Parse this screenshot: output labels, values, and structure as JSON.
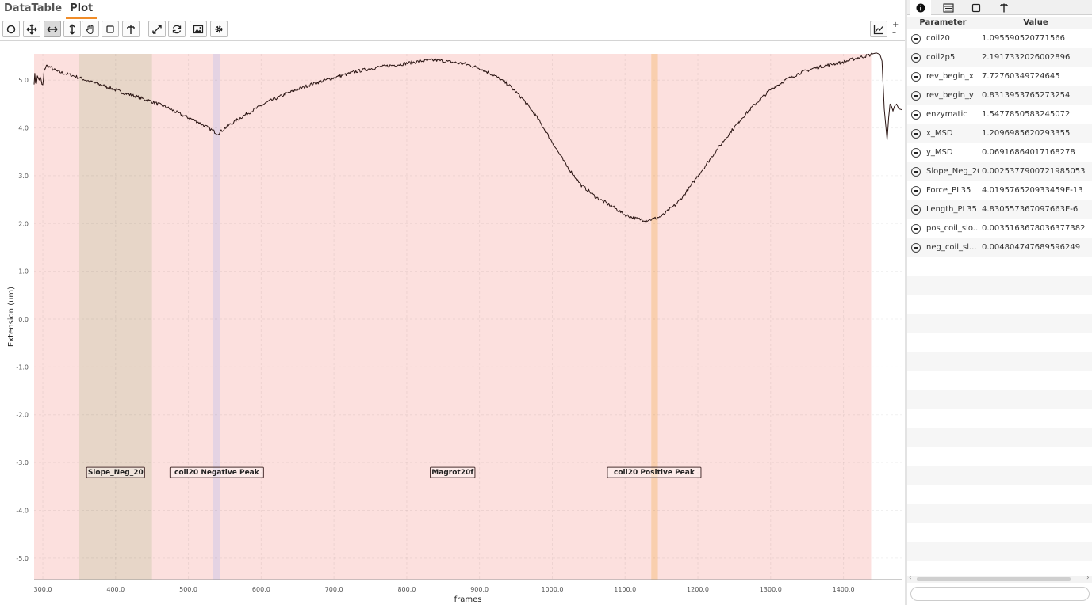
{
  "tabs": [
    {
      "label": "DataTable",
      "active": false
    },
    {
      "label": "Plot",
      "active": true
    }
  ],
  "toolbar": {
    "tools": [
      "select-tool-icon",
      "pan-move-icon",
      "horizontal-zoom-icon",
      "vertical-zoom-icon",
      "grab-hand-icon",
      "box-select-icon",
      "annotate-pin-icon",
      "expand-icon",
      "refresh-icon",
      "save-image-icon",
      "settings-gear-icon",
      "chart-line-icon"
    ],
    "active_tool": "horizontal-zoom-icon",
    "zoom_plus": "+",
    "zoom_minus": "–"
  },
  "colors": {
    "trace": "#2a1412",
    "region_main": "#fce0de",
    "region_slope": "#e7d6c8",
    "region_neg_peak": "#e4d3e3",
    "region_pos_peak": "#f9cfae",
    "active_tab_underline": "#f08c28"
  },
  "chart_data": {
    "type": "line",
    "xlabel": "frames",
    "ylabel": "Extension (um)",
    "xlim": [
      288,
      1480
    ],
    "ylim": [
      -5.45,
      5.55
    ],
    "x_ticks": [
      300,
      400,
      500,
      600,
      700,
      800,
      900,
      1000,
      1100,
      1200,
      1300,
      1400
    ],
    "x_tick_labels": [
      "300.0",
      "400.0",
      "500.0",
      "600.0",
      "700.0",
      "800.0",
      "900.0",
      "1000.0",
      "1100.0",
      "1200.0",
      "1300.0",
      "1400.0"
    ],
    "y_ticks": [
      5,
      4,
      3,
      2,
      1,
      0,
      -1,
      -2,
      -3,
      -4,
      -5
    ],
    "y_tick_labels": [
      "5.0",
      "4.0",
      "3.0",
      "2.0",
      "1.0",
      "0.0",
      "-1.0",
      "-2.0",
      "-3.0",
      "-4.0",
      "-5.0"
    ],
    "grid": true,
    "regions": [
      {
        "label": "Magrot20f",
        "x": [
          288,
          1438
        ],
        "color": "#fce0de"
      },
      {
        "label": "Slope_Neg_20",
        "x": [
          350,
          450
        ],
        "color": "#e7d6c8"
      },
      {
        "label": "coil20 Negative Peak",
        "x": [
          534,
          544
        ],
        "color": "#e4d3e3"
      },
      {
        "label": "coil20 Positive Peak",
        "x": [
          1136,
          1145
        ],
        "color": "#f9cfae"
      }
    ],
    "annotations": [
      {
        "text": "Slope_Neg_20",
        "x": 400,
        "y": -3.2
      },
      {
        "text": "coil20 Negative Peak",
        "x": 539,
        "y": -3.2
      },
      {
        "text": "Magrot20f",
        "x": 863,
        "y": -3.2
      },
      {
        "text": "coil20 Positive Peak",
        "x": 1140,
        "y": -3.2
      }
    ],
    "series": [
      {
        "x": [
          288,
          290,
          295,
          300,
          303,
          306,
          310,
          315,
          320,
          330,
          340,
          350,
          365,
          380,
          395,
          410,
          430,
          450,
          470,
          490,
          510,
          525,
          535,
          540,
          545,
          555,
          570,
          590,
          610,
          640,
          670,
          700,
          730,
          760,
          790,
          820,
          840,
          860,
          880,
          900,
          920,
          940,
          960,
          980,
          1000,
          1010,
          1020,
          1030,
          1040,
          1050,
          1060,
          1080,
          1100,
          1115,
          1130,
          1140,
          1150,
          1160,
          1170,
          1180,
          1190,
          1200,
          1210,
          1220,
          1240,
          1260,
          1280,
          1300,
          1320,
          1340,
          1360,
          1380,
          1400,
          1420,
          1435,
          1440,
          1445,
          1450,
          1453,
          1456,
          1460,
          1462,
          1464,
          1466,
          1468,
          1470,
          1473,
          1476,
          1480
        ],
        "y": [
          5.05,
          5.0,
          5.05,
          4.85,
          5.3,
          5.3,
          5.27,
          5.22,
          5.18,
          5.14,
          5.1,
          5.05,
          4.97,
          4.9,
          4.82,
          4.74,
          4.65,
          4.55,
          4.43,
          4.28,
          4.15,
          4.02,
          3.93,
          3.88,
          3.93,
          4.05,
          4.2,
          4.38,
          4.55,
          4.75,
          4.92,
          5.05,
          5.18,
          5.27,
          5.33,
          5.4,
          5.42,
          5.38,
          5.34,
          5.25,
          5.1,
          4.9,
          4.6,
          4.2,
          3.7,
          3.45,
          3.2,
          3.0,
          2.8,
          2.68,
          2.55,
          2.38,
          2.18,
          2.1,
          2.07,
          2.1,
          2.15,
          2.28,
          2.4,
          2.58,
          2.78,
          3.0,
          3.2,
          3.42,
          3.82,
          4.2,
          4.52,
          4.8,
          5.0,
          5.15,
          5.25,
          5.32,
          5.38,
          5.47,
          5.52,
          5.55,
          5.57,
          5.54,
          5.4,
          4.4,
          3.75,
          4.2,
          4.5,
          4.45,
          4.35,
          4.45,
          4.5,
          4.4,
          4.38
        ]
      }
    ]
  },
  "params": {
    "header_parameter": "Parameter",
    "header_value": "Value",
    "rows": [
      {
        "name": "coil20",
        "value": "1.095590520771566"
      },
      {
        "name": "coil2p5",
        "value": "2.1917332026002896"
      },
      {
        "name": "rev_begin_x",
        "value": "7.72760349724645"
      },
      {
        "name": "rev_begin_y",
        "value": "0.8313953765273254"
      },
      {
        "name": "enzymatic",
        "value": "1.547785058324507​2"
      },
      {
        "name": "x_MSD",
        "value": "1.2096985620293355"
      },
      {
        "name": "y_MSD",
        "value": "0.06916864017168278"
      },
      {
        "name": "Slope_Neg_20",
        "value": "0.0025377900721985053"
      },
      {
        "name": "Force_PL35",
        "value": "4.019576520933459E-13"
      },
      {
        "name": "Length_PL35",
        "value": "4.830557367097663E-6"
      },
      {
        "name": "pos_coil_slo...",
        "value": "0.0035163678036377382"
      },
      {
        "name": "neg_coil_sl...",
        "value": "0.004804747689596249"
      }
    ]
  },
  "right_tabs": [
    "info-icon",
    "table-icon",
    "square-region-icon",
    "pin-icon"
  ]
}
